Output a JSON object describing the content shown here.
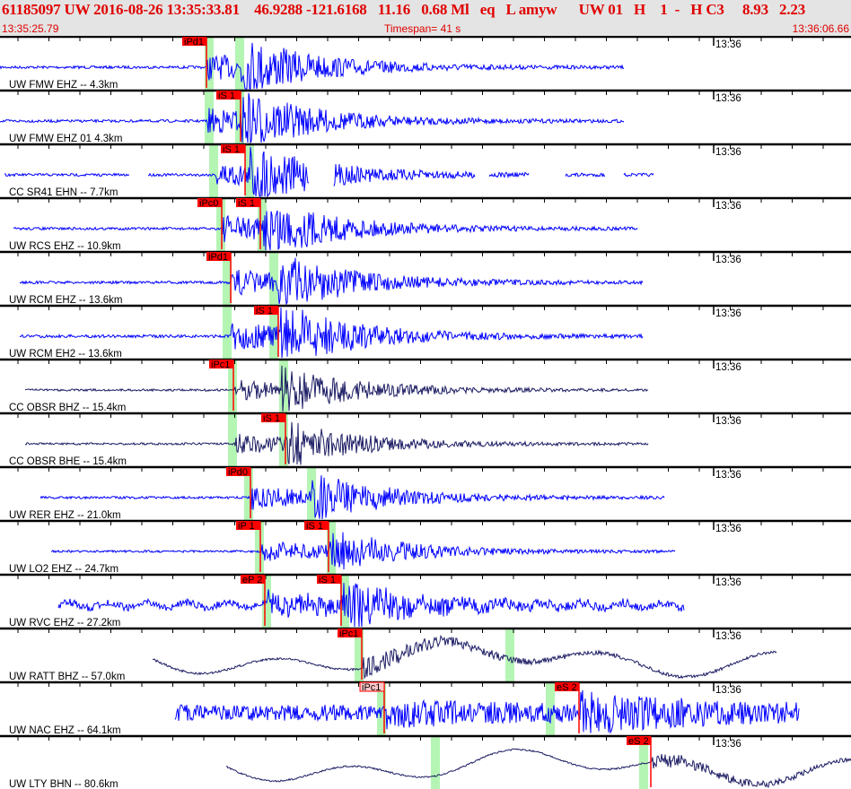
{
  "header": {
    "title": "61185097 UW 2016-08-26 13:35:33.81    46.9288 -121.6168   11.16   0.68 Ml   eq   L amyw      UW 01   H    1  -   H C3     8.93   2.23",
    "start_time": "13:35:25.79",
    "timespan": "Timespan=  41 s",
    "end_time": "13:36:06.66"
  },
  "tick_label": "13:36",
  "colors": {
    "trace_blue": "#0000ff",
    "trace_navy": "#1c1c64",
    "pick": "#ff0000",
    "pick_weak": "#ffc8c8",
    "window": "#b4f5b4",
    "header_text": "#e00000"
  },
  "channels": [
    {
      "label": "UW FMW EHZ -- 4.3km",
      "picks": [
        "iPd1"
      ]
    },
    {
      "label": "UW FMW EHZ 01 4.3km",
      "picks": [
        "iS 1"
      ]
    },
    {
      "label": "CC SR41 EHN -- 7.7km",
      "picks": [
        "iS 1"
      ]
    },
    {
      "label": "UW RCS EHZ -- 10.9km",
      "picks": [
        "iPc0",
        "iS 1"
      ]
    },
    {
      "label": "UW RCM EHZ -- 13.6km",
      "picks": [
        "iPd1"
      ]
    },
    {
      "label": "UW RCM EH2 -- 13.6km",
      "picks": [
        "iS 1"
      ]
    },
    {
      "label": "CC OBSR BHZ -- 15.4km",
      "picks": [
        "iPc1"
      ]
    },
    {
      "label": "CC OBSR BHE -- 15.4km",
      "picks": [
        "iS 1"
      ]
    },
    {
      "label": "UW RER EHZ -- 21.0km",
      "picks": [
        "iPd0"
      ]
    },
    {
      "label": "UW LO2 EHZ -- 24.7km",
      "picks": [
        "iP 1",
        "iS 1"
      ]
    },
    {
      "label": "UW RVC EHZ -- 27.2km",
      "picks": [
        "eP 2",
        "iS 1"
      ]
    },
    {
      "label": "UW RATT BHZ -- 57.0km",
      "picks": [
        "iPc1"
      ]
    },
    {
      "label": "UW NAC EHZ -- 64.1km",
      "picks": [
        "iPc1",
        "eS 2"
      ]
    },
    {
      "label": "UW LTY BHN -- 80.6km",
      "picks": [
        "eS 2"
      ]
    }
  ]
}
